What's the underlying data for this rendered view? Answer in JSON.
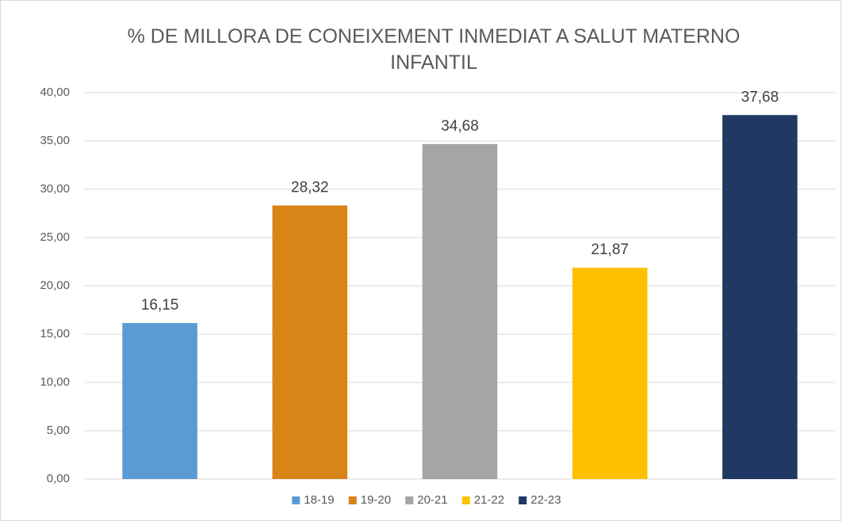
{
  "chart_data": {
    "type": "bar",
    "title": "% DE MILLORA DE CONEIXEMENT INMEDIAT A SALUT MATERNO INFANTIL",
    "categories": [
      null
    ],
    "series": [
      {
        "name": "18-19",
        "color": "#5b9bd5",
        "values": [
          16.15
        ],
        "value_labels": [
          "16,15"
        ]
      },
      {
        "name": "19-20",
        "color": "#d98416",
        "values": [
          28.32
        ],
        "value_labels": [
          "28,32"
        ]
      },
      {
        "name": "20-21",
        "color": "#a5a5a5",
        "values": [
          34.68
        ],
        "value_labels": [
          "34,68"
        ]
      },
      {
        "name": "21-22",
        "color": "#ffc000",
        "values": [
          21.87
        ],
        "value_labels": [
          "21,87"
        ]
      },
      {
        "name": "22-23",
        "color": "#203864",
        "values": [
          37.68
        ],
        "value_labels": [
          "37,68"
        ]
      }
    ],
    "ylim": [
      0,
      40
    ],
    "yticks": [
      {
        "value": 0,
        "label": "0,00"
      },
      {
        "value": 5,
        "label": "5,00"
      },
      {
        "value": 10,
        "label": "10,00"
      },
      {
        "value": 15,
        "label": "15,00"
      },
      {
        "value": 20,
        "label": "20,00"
      },
      {
        "value": 25,
        "label": "25,00"
      },
      {
        "value": 30,
        "label": "30,00"
      },
      {
        "value": 35,
        "label": "35,00"
      },
      {
        "value": 40,
        "label": "40,00"
      }
    ],
    "grid": true,
    "legend": "bottom"
  }
}
